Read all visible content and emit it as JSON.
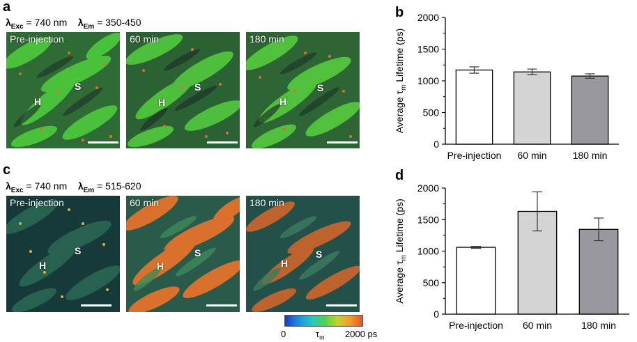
{
  "panels": {
    "a": {
      "letter": "a",
      "exc_lambda": "λ",
      "exc_sub": "Exc",
      "exc_value": " = 740 nm",
      "em_lambda": "λ",
      "em_sub": "Em",
      "em_value": " = 350-450",
      "images": [
        {
          "label": "Pre-injection",
          "h": "H",
          "s": "S"
        },
        {
          "label": "60 min",
          "h": "H",
          "s": "S"
        },
        {
          "label": "180 min",
          "h": "H",
          "s": "S"
        }
      ]
    },
    "c": {
      "letter": "c",
      "exc_lambda": "λ",
      "exc_sub": "Exc",
      "exc_value": " = 740 nm",
      "em_lambda": "λ",
      "em_sub": "Em",
      "em_value": " = 515-620",
      "images": [
        {
          "label": "Pre-injection",
          "h": "H",
          "s": "S"
        },
        {
          "label": "60 min",
          "h": "H",
          "s": "S"
        },
        {
          "label": "180 min",
          "h": "H",
          "s": "S"
        }
      ]
    }
  },
  "colorbar": {
    "min_label": "0",
    "symbol": "τ",
    "symbol_sub": "m",
    "max_label": "2000 ps"
  },
  "colors": {
    "bar_white": "#ffffff",
    "bar_light_gray": "#d4d4d4",
    "bar_dark_gray": "#98989e"
  },
  "chart_data": [
    {
      "panel": "b",
      "type": "bar",
      "categories": [
        "Pre-injection",
        "60 min",
        "180 min"
      ],
      "values": [
        1170,
        1140,
        1075
      ],
      "errors": [
        50,
        45,
        35
      ],
      "bar_colors": [
        "#ffffff",
        "#d4d4d4",
        "#98989e"
      ],
      "ylabel_prefix": "Average τ",
      "ylabel_sub": "m",
      "ylabel_suffix": " Lifetime (ps)",
      "ylim": [
        0,
        2000
      ],
      "yticks": [
        0,
        500,
        1000,
        1500,
        2000
      ],
      "ytick_labels": [
        "0",
        "500",
        "1000",
        "1500",
        "2000"
      ]
    },
    {
      "panel": "d",
      "type": "bar",
      "categories": [
        "Pre-injection",
        "60 min",
        "180 min"
      ],
      "values": [
        1060,
        1630,
        1345
      ],
      "errors": [
        15,
        310,
        180
      ],
      "bar_colors": [
        "#ffffff",
        "#d4d4d4",
        "#98989e"
      ],
      "ylabel_prefix": "Average τ",
      "ylabel_sub": "m",
      "ylabel_suffix": " Lifetime (ps)",
      "ylim": [
        0,
        2000
      ],
      "yticks": [
        0,
        500,
        1000,
        1500,
        2000
      ],
      "ytick_labels": [
        "0",
        "500",
        "1000",
        "1500",
        "2000"
      ]
    }
  ]
}
